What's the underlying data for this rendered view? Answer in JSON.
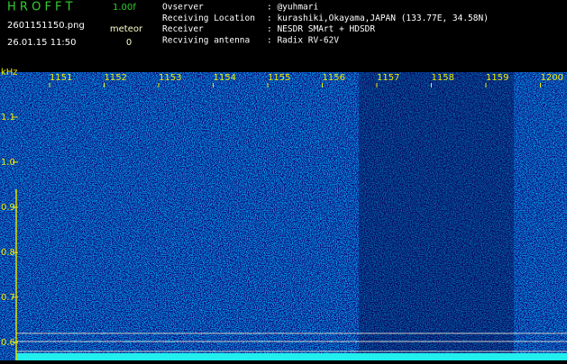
{
  "header": {
    "logo": "H R O F F T",
    "version": "1.00f",
    "filename": "2601151150.png",
    "timestamp": "26.01.15 11:50",
    "meteor_label": "meteor",
    "meteor_count": 0,
    "info": [
      {
        "label": "Ovserver",
        "value": ": @yuhmari"
      },
      {
        "label": "Receiving Location",
        "value": ": kurashiki,Okayama,JAPAN (133.77E, 34.58N)"
      },
      {
        "label": "Receiver",
        "value": ": NESDR SMArt + HDSDR"
      },
      {
        "label": "Recviving antenna",
        "value": ": Radix RV-62V"
      }
    ]
  },
  "chart_data": {
    "type": "spectrogram",
    "y_label": "kHz",
    "x_ticks": [
      "1151",
      "1152",
      "1153",
      "1154",
      "1155",
      "1156",
      "1157",
      "1158",
      "1159",
      "1200"
    ],
    "ylim": [
      0.56,
      1.2
    ],
    "yticks": [
      0.6,
      0.7,
      0.8,
      0.9,
      {
        "value": 1.0,
        "label": "1.0"
      },
      1.1
    ]
  }
}
